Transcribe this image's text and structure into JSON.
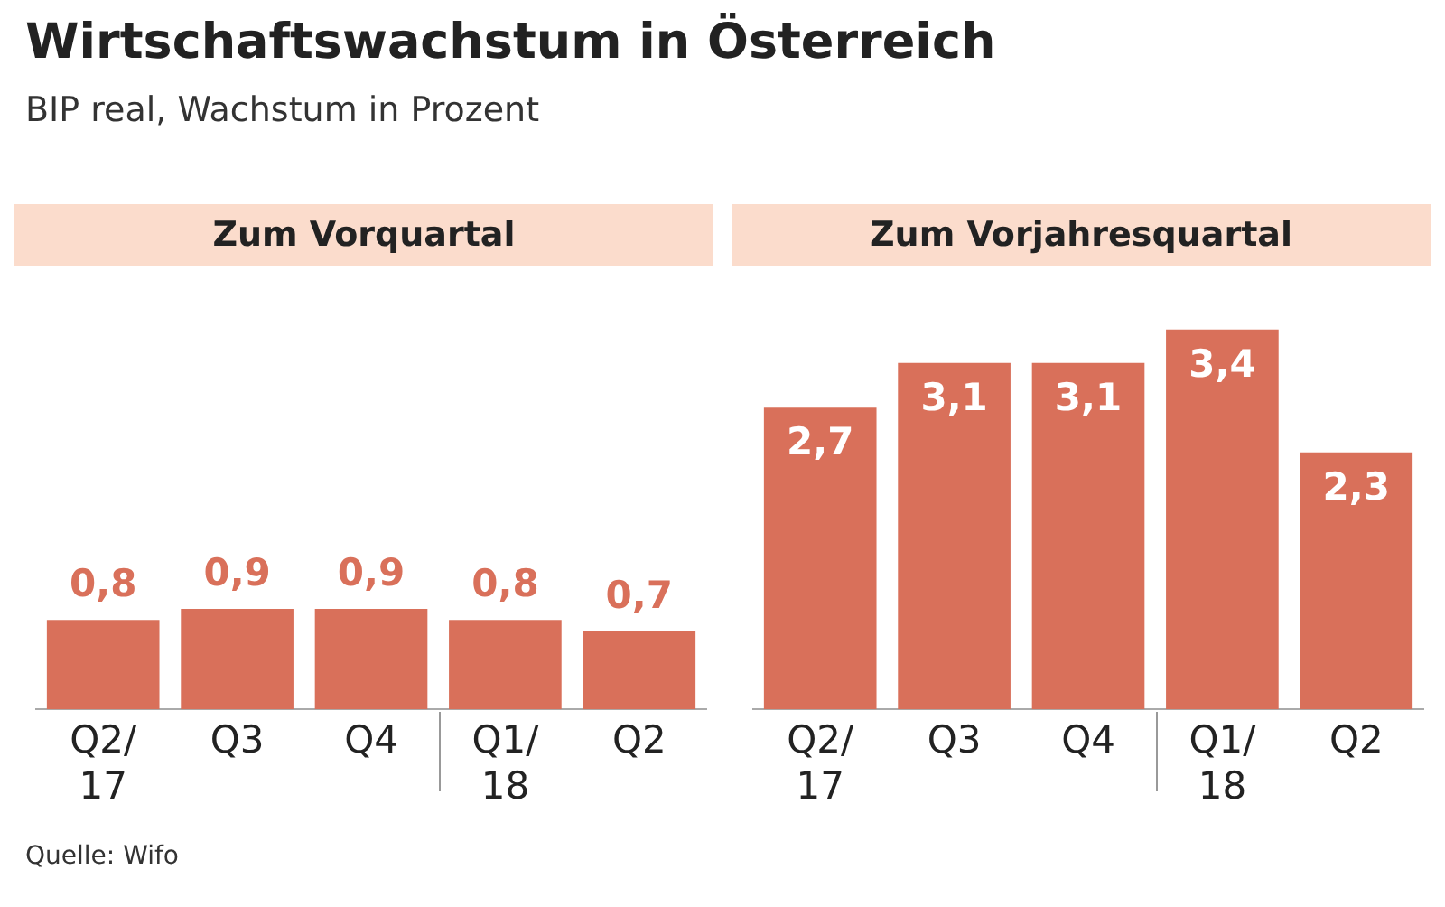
{
  "chart_data": [
    {
      "type": "other",
      "title": "Wirtschaftswachstum in Österreich",
      "subtitle": "BIP real, Wachstum in Prozent"
    },
    {
      "type": "bar",
      "title": "Zum Vorquartal",
      "categories": [
        "Q2/\n17",
        "Q3",
        "Q4",
        "Q1/\n18",
        "Q2"
      ],
      "values": [
        0.8,
        0.9,
        0.9,
        0.8,
        0.7
      ],
      "value_labels": [
        "0,8",
        "0,9",
        "0,9",
        "0,8",
        "0,7"
      ],
      "color": "#d9705a",
      "tick_labels": "x",
      "grid": false,
      "legend": false
    },
    {
      "type": "bar",
      "title": "Zum Vorjahresquartal",
      "categories": [
        "Q2/\n17",
        "Q3",
        "Q4",
        "Q1/\n18",
        "Q2"
      ],
      "values": [
        2.7,
        3.1,
        3.1,
        3.4,
        2.3
      ],
      "value_labels": [
        "2,7",
        "3,1",
        "3,1",
        "3,4",
        "2,3"
      ],
      "color": "#d9705a",
      "tick_labels": "x",
      "grid": false,
      "legend": false,
      "annotations": [
        "Quelle: Wifo"
      ]
    }
  ]
}
